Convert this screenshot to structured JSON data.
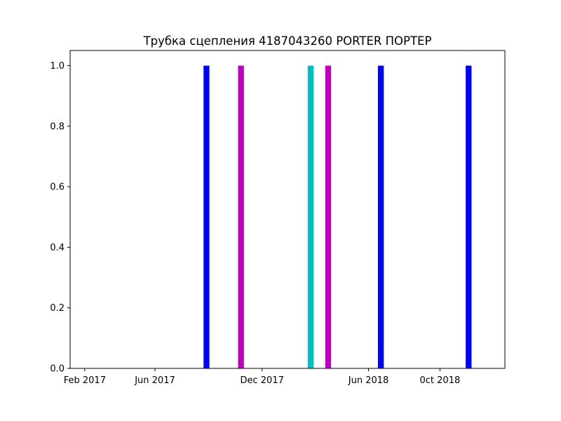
{
  "chart_data": {
    "type": "bar",
    "title": "Трубка сцепления 4187043260 PORTER ПОРТЕР",
    "xlabel": "",
    "ylabel": "",
    "x_range": [
      "2017-01-07",
      "2019-01-20"
    ],
    "ylim": [
      0,
      1.05
    ],
    "grid": false,
    "x_ticks": [
      {
        "date": "2017-02-01",
        "label": "Feb 2017"
      },
      {
        "date": "2017-06-01",
        "label": "Jun 2017"
      },
      {
        "date": "2017-12-01",
        "label": "Dec 2017"
      },
      {
        "date": "2018-06-01",
        "label": "Jun 2018"
      },
      {
        "date": "2018-10-01",
        "label": "0ct 2018"
      }
    ],
    "y_ticks": [
      {
        "value": 0.0,
        "label": "0.0"
      },
      {
        "value": 0.2,
        "label": "0.2"
      },
      {
        "value": 0.4,
        "label": "0.4"
      },
      {
        "value": 0.6,
        "label": "0.6"
      },
      {
        "value": 0.8,
        "label": "0.8"
      },
      {
        "value": 1.0,
        "label": "1.0"
      }
    ],
    "bars": [
      {
        "date": "2017-08-28",
        "value": 1.0,
        "color": "#0000ff"
      },
      {
        "date": "2017-10-26",
        "value": 1.0,
        "color": "#bf00bf"
      },
      {
        "date": "2018-02-22",
        "value": 1.0,
        "color": "#00bfbf"
      },
      {
        "date": "2018-03-24",
        "value": 1.0,
        "color": "#bf00bf"
      },
      {
        "date": "2018-06-22",
        "value": 1.0,
        "color": "#0000ff"
      },
      {
        "date": "2018-11-19",
        "value": 1.0,
        "color": "#0000ff"
      }
    ]
  }
}
